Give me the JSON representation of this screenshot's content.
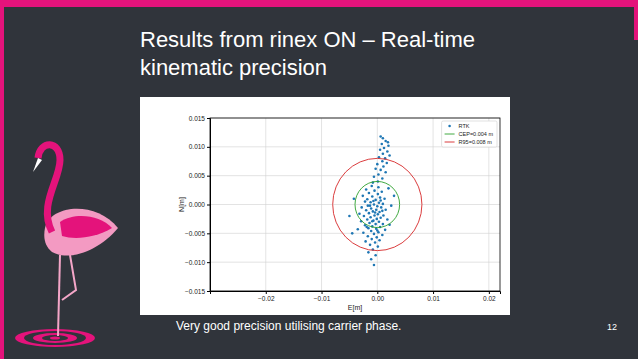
{
  "chart_data": {
    "type": "scatter",
    "title": "Results from rinex ON – Real-time kinematic precision",
    "x_label": "E[m]",
    "y_label": "N[m]",
    "xlim": [
      -0.03,
      0.022
    ],
    "ylim": [
      -0.015,
      0.015
    ],
    "xticks": [
      {
        "value": -0.02,
        "label": "−0.02"
      },
      {
        "value": -0.01,
        "label": "−0.01"
      },
      {
        "value": 0,
        "label": "0.00"
      },
      0.01,
      0.02
    ],
    "yticks": [
      {
        "value": -0.015,
        "label": "−0.015"
      },
      {
        "value": -0.01,
        "label": "−0.010"
      },
      {
        "value": -0.005,
        "label": "−0.005"
      },
      {
        "value": 0,
        "label": "0.000"
      },
      0.005,
      {
        "value": 0.01,
        "label": "0.010"
      },
      0.015
    ],
    "grid": true,
    "legend": "upper right",
    "x": [
      0.001,
      0.0015,
      0.0008,
      0.002,
      0.0012,
      0.0005,
      0.0018,
      0.001,
      0.0022,
      0.0003,
      0.0014,
      0.0009,
      0.0017,
      0,
      0.0011,
      -0.0003,
      0.0006,
      0.0015,
      0.0002,
      -0.0006,
      0.0009,
      0.0001,
      -0.0008,
      0.0019,
      0.0006,
      -0.001,
      0.0002,
      -0.002,
      -0.0005,
      0.0008,
      -0.0015,
      0.0001,
      -0.0026,
      -0.0009,
      0.0005,
      0.0013,
      -0.0018,
      -0.0003,
      -0.0022,
      -0.0012,
      0.0003,
      0.001,
      -0.0006,
      -0.0017,
      0,
      -0.0028,
      0.0007,
      -0.0011,
      -0.0002,
      0.0015,
      -0.002,
      -0.0008,
      0.0004,
      -0.0015,
      -0.0032,
      0.0001,
      -0.0005,
      0.0011,
      -0.0024,
      -0.0012,
      0.0006,
      -0.0001,
      -0.0018,
      0.0018,
      -0.0007,
      -0.0029,
      0.0003,
      -0.0014,
      -0.0003,
      0.001,
      -0.0022,
      -0.0009,
      0.0005,
      -0.0016,
      -0.0002,
      -0.0035,
      0.0014,
      -0.0011,
      0.0002,
      -0.0025,
      -0.0006,
      0.0009,
      -0.0017,
      -0.0001,
      -0.001,
      0.0004,
      -0.0021,
      -0.0004,
      -0.0013,
      0.0001,
      -0.0008,
      -0.0016,
      -0.0003,
      -0.0011,
      -0.0006,
      0.0025,
      0.0022,
      -0.0045,
      -0.005,
      -0.0042,
      0.003,
      0.002,
      -0.0004,
      -0.0013,
      0.0009,
      -0.0007,
      -0.0019,
      0,
      -0.0009,
      0.0006
    ],
    "series": [
      {
        "name": "RTK",
        "color": "#1f77b4",
        "marker": "o",
        "values": [
          0.0115,
          0.011,
          0.0105,
          0.0102,
          0.0098,
          0.0095,
          0.0092,
          0.0088,
          0.0085,
          0.0082,
          0.008,
          0.0075,
          0.0072,
          0.007,
          0.0066,
          0.0062,
          0.006,
          0.0056,
          0.0052,
          0.0048,
          0.0045,
          0.004,
          0.0038,
          0.0108,
          0.0118,
          0.0032,
          0.003,
          0.0026,
          0.0024,
          0.0022,
          0.002,
          0.0018,
          0.0015,
          0.0014,
          0.0012,
          0.001,
          0.0009,
          0.0008,
          0.0005,
          0.0004,
          0.0003,
          0.0001,
          0,
          -0.0002,
          -0.0003,
          -0.0005,
          -0.0005,
          -0.0007,
          -0.0009,
          -0.0009,
          -0.001,
          -0.0012,
          -0.0013,
          -0.0015,
          -0.0016,
          -0.0017,
          -0.0019,
          -0.0019,
          -0.002,
          -0.0022,
          -0.0023,
          -0.0025,
          -0.0026,
          -0.0026,
          -0.0028,
          -0.0029,
          -0.003,
          -0.0032,
          -0.0034,
          -0.0034,
          -0.0036,
          -0.0038,
          -0.0039,
          -0.0041,
          -0.0042,
          -0.0043,
          -0.0044,
          -0.0046,
          -0.0048,
          -0.0049,
          -0.0051,
          -0.0053,
          -0.0055,
          -0.0057,
          -0.006,
          -0.0062,
          -0.0064,
          -0.0066,
          -0.007,
          -0.0073,
          -0.0078,
          -0.0083,
          -0.0088,
          -0.0095,
          -0.0105,
          -0.0002,
          -0.0035,
          -0.005,
          -0.002,
          0.001,
          0.0015,
          0.0028,
          -0.0014,
          -0.0002,
          -0.0011,
          0.0006,
          -0.0039,
          -0.0045,
          -0.0029,
          0.0007
        ]
      }
    ],
    "circles": [
      {
        "name": "CEP=0.004 m",
        "radius": 0.004,
        "color": "#2ca02c",
        "line_style": "solid"
      },
      {
        "name": "R95=0.008 m",
        "radius": 0.008,
        "color": "#d62728",
        "line_style": "solid"
      }
    ]
  },
  "slide": {
    "caption": "Very good precision utilising carrier phase.",
    "page": 12
  }
}
